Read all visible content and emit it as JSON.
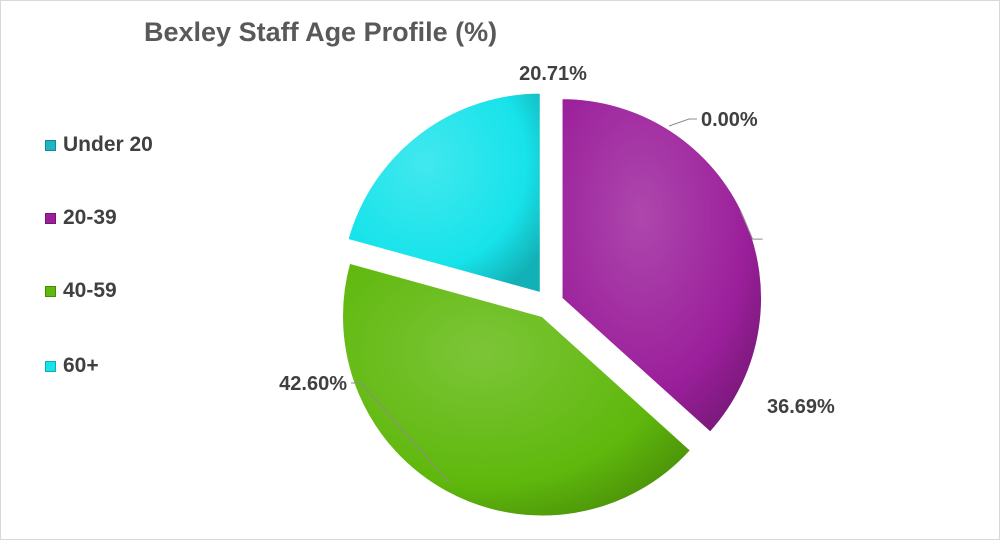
{
  "chart_data": {
    "type": "pie",
    "title": "Bexley Staff Age Profile (%)",
    "categories": [
      "Under 20",
      "20-39",
      "40-59",
      "60+"
    ],
    "values": [
      0.0,
      36.69,
      42.6,
      20.71
    ],
    "value_labels": [
      "0.00%",
      "36.69%",
      "42.60%",
      "20.71%"
    ],
    "colors": [
      "#1fb6c4",
      "#9b1f9b",
      "#5fb80c",
      "#17e3ea"
    ],
    "legend_position": "left",
    "exploded": true
  }
}
